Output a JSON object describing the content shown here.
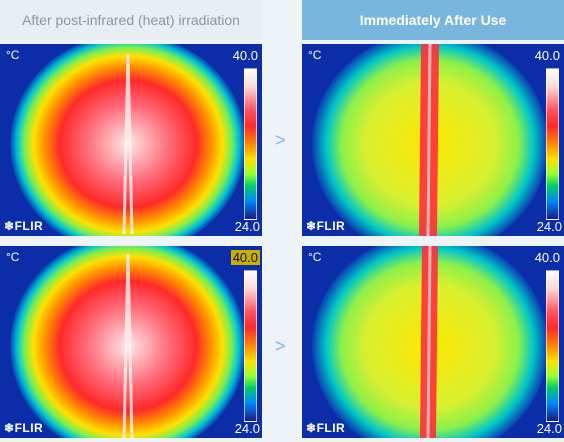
{
  "headers": {
    "before": "After post-infrared (heat) irradiation",
    "after": "Immediately After Use"
  },
  "panels": [
    {
      "unit": "°C",
      "max": "40.0",
      "min": "24.0",
      "brand": "FLIR"
    },
    {
      "unit": "°C",
      "max": "40.0",
      "min": "24.0",
      "brand": "FLIR"
    },
    {
      "unit": "°C",
      "max": "40.0",
      "min": "24.0",
      "brand": "FLIR"
    },
    {
      "unit": "°C",
      "max": "40.0",
      "min": "24.0",
      "brand": "FLIR"
    }
  ],
  "arrows": [
    ">",
    ">"
  ],
  "colors": {
    "after_header_bg": "#79b6dd",
    "before_header_bg": "#e9eef2",
    "arrow": "#7fb7d8"
  }
}
